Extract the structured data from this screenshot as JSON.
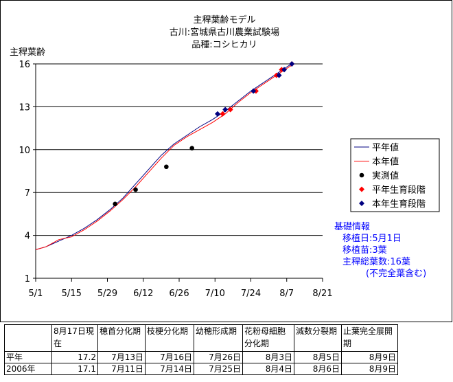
{
  "chart_data": {
    "type": "line",
    "title_lines": [
      "主稈葉齢モデル",
      "古川:宮城県古川農業試験場",
      "品種:コシヒカリ"
    ],
    "ylabel": "主稈葉齢",
    "ylim": [
      1,
      16
    ],
    "yticks": [
      1,
      4,
      7,
      10,
      13,
      16
    ],
    "xlim": [
      "5/1",
      "8/21"
    ],
    "xticks": [
      "5/1",
      "5/15",
      "5/29",
      "6/12",
      "6/26",
      "7/10",
      "7/24",
      "8/7",
      "8/21"
    ],
    "grid": "horizontal",
    "legend_position": "right",
    "legend": [
      {
        "label": "平年値",
        "marker": "line",
        "color": "#000080"
      },
      {
        "label": "本年値",
        "marker": "line",
        "color": "#ff0000"
      },
      {
        "label": "実測値",
        "marker": "circle",
        "color": "#000000"
      },
      {
        "label": "平年生育段階",
        "marker": "diamond",
        "color": "#ff0000"
      },
      {
        "label": "本年生育段階",
        "marker": "diamond",
        "color": "#000080"
      }
    ],
    "series": [
      {
        "name": "平年値",
        "kind": "line",
        "color": "#000080",
        "x": [
          "5/1",
          "5/5",
          "5/10",
          "5/15",
          "5/20",
          "5/25",
          "5/30",
          "6/4",
          "6/9",
          "6/14",
          "6/19",
          "6/24",
          "6/29",
          "7/4",
          "7/9",
          "7/14",
          "7/19",
          "7/24",
          "7/29",
          "8/3",
          "8/8",
          "8/10"
        ],
        "y": [
          3.0,
          3.2,
          3.6,
          4.0,
          4.5,
          5.1,
          5.8,
          6.6,
          7.6,
          8.6,
          9.6,
          10.4,
          11.0,
          11.6,
          12.1,
          12.7,
          13.4,
          14.1,
          14.7,
          15.3,
          15.9,
          16.0
        ]
      },
      {
        "name": "本年値",
        "kind": "line",
        "color": "#ff0000",
        "x": [
          "5/1",
          "5/5",
          "5/10",
          "5/15",
          "5/20",
          "5/25",
          "5/30",
          "6/4",
          "6/9",
          "6/14",
          "6/19",
          "6/24",
          "6/29",
          "7/4",
          "7/9",
          "7/14",
          "7/19",
          "7/24",
          "7/29",
          "8/3",
          "8/8",
          "8/10"
        ],
        "y": [
          3.0,
          3.2,
          3.7,
          3.9,
          4.4,
          5.0,
          5.7,
          6.5,
          7.4,
          8.4,
          9.4,
          10.3,
          10.9,
          11.4,
          11.9,
          12.5,
          13.3,
          14.0,
          14.6,
          15.2,
          15.8,
          16.0
        ]
      },
      {
        "name": "実測値",
        "kind": "circle",
        "color": "#000000",
        "x": [
          "6/1",
          "6/9",
          "6/21",
          "7/1"
        ],
        "y": [
          6.2,
          7.2,
          8.8,
          10.1
        ]
      },
      {
        "name": "平年生育段階",
        "kind": "diamond",
        "color": "#ff0000",
        "x": [
          "7/13",
          "7/16",
          "7/26",
          "8/3",
          "8/5",
          "8/9"
        ],
        "y": [
          12.5,
          12.8,
          14.1,
          15.2,
          15.6,
          16.0
        ]
      },
      {
        "name": "本年生育段階",
        "kind": "diamond",
        "color": "#000080",
        "x": [
          "7/11",
          "7/14",
          "7/25",
          "8/4",
          "8/6",
          "8/9"
        ],
        "y": [
          12.5,
          12.8,
          14.1,
          15.2,
          15.6,
          16.0
        ]
      }
    ]
  },
  "info": {
    "title": "基礎情報",
    "lines": [
      "移植日:5月1日",
      "移植苗:3葉",
      "主稈総葉数:16葉",
      "(不完全葉含む)"
    ]
  },
  "stage_table": {
    "headers": [
      "",
      "8月17日現在",
      "穂首分化期",
      "枝梗分化期",
      "幼穂形成期",
      "花粉母細胞分化期",
      "減数分裂期",
      "止葉完全展開期"
    ],
    "rows": [
      [
        "平年",
        "17.2",
        "7月13日",
        "7月16日",
        "7月26日",
        "8月3日",
        "8月5日",
        "8月9日"
      ],
      [
        "2006年",
        "17.1",
        "7月11日",
        "7月14日",
        "7月25日",
        "8月4日",
        "8月6日",
        "8月9日"
      ]
    ]
  }
}
